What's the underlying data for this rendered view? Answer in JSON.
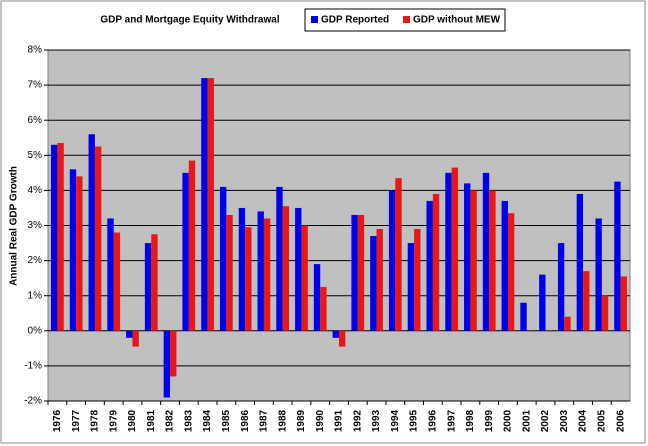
{
  "chart_data": {
    "type": "bar",
    "title": "GDP and Mortgage Equity Withdrawal",
    "y_label": "Annual Real GDP Growth",
    "categories": [
      "1976",
      "1977",
      "1978",
      "1979",
      "1980",
      "1981",
      "1982",
      "1983",
      "1984",
      "1985",
      "1986",
      "1987",
      "1988",
      "1989",
      "1990",
      "1991",
      "1992",
      "1993",
      "1994",
      "1995",
      "1996",
      "1997",
      "1998",
      "1999",
      "2000",
      "2001",
      "2002",
      "2003",
      "2004",
      "2005",
      "2006"
    ],
    "series": [
      {
        "name": "GDP Reported",
        "color": "#0000e6",
        "values": [
          5.3,
          4.6,
          5.6,
          3.2,
          -0.2,
          2.5,
          -1.9,
          4.5,
          7.2,
          4.1,
          3.5,
          3.4,
          4.1,
          3.5,
          1.9,
          -0.2,
          3.3,
          2.7,
          4.0,
          2.5,
          3.7,
          4.5,
          4.2,
          4.5,
          3.7,
          0.8,
          1.6,
          2.5,
          3.9,
          3.2,
          4.25
        ]
      },
      {
        "name": "GDP without MEW",
        "color": "#e61919",
        "values": [
          5.35,
          4.4,
          5.25,
          2.8,
          -0.45,
          2.75,
          -1.3,
          4.85,
          7.2,
          3.3,
          2.95,
          3.2,
          3.55,
          3.0,
          1.25,
          -0.45,
          3.3,
          2.9,
          4.35,
          2.9,
          3.9,
          4.65,
          4.0,
          4.0,
          3.35,
          0,
          0,
          0.4,
          1.7,
          1.0,
          1.55
        ]
      }
    ],
    "ylim": [
      -2,
      8
    ],
    "yticks": [
      {
        "value": -2,
        "label": "-2%"
      },
      {
        "value": -1,
        "label": "-1%"
      },
      {
        "value": 0,
        "label": "0%"
      },
      {
        "value": 1,
        "label": "1%"
      },
      {
        "value": 2,
        "label": "2%"
      },
      {
        "value": 3,
        "label": "3%"
      },
      {
        "value": 4,
        "label": "4%"
      },
      {
        "value": 5,
        "label": "5%"
      },
      {
        "value": 6,
        "label": "6%"
      },
      {
        "value": 7,
        "label": "7%"
      },
      {
        "value": 8,
        "label": "8%"
      }
    ],
    "grid": true
  }
}
